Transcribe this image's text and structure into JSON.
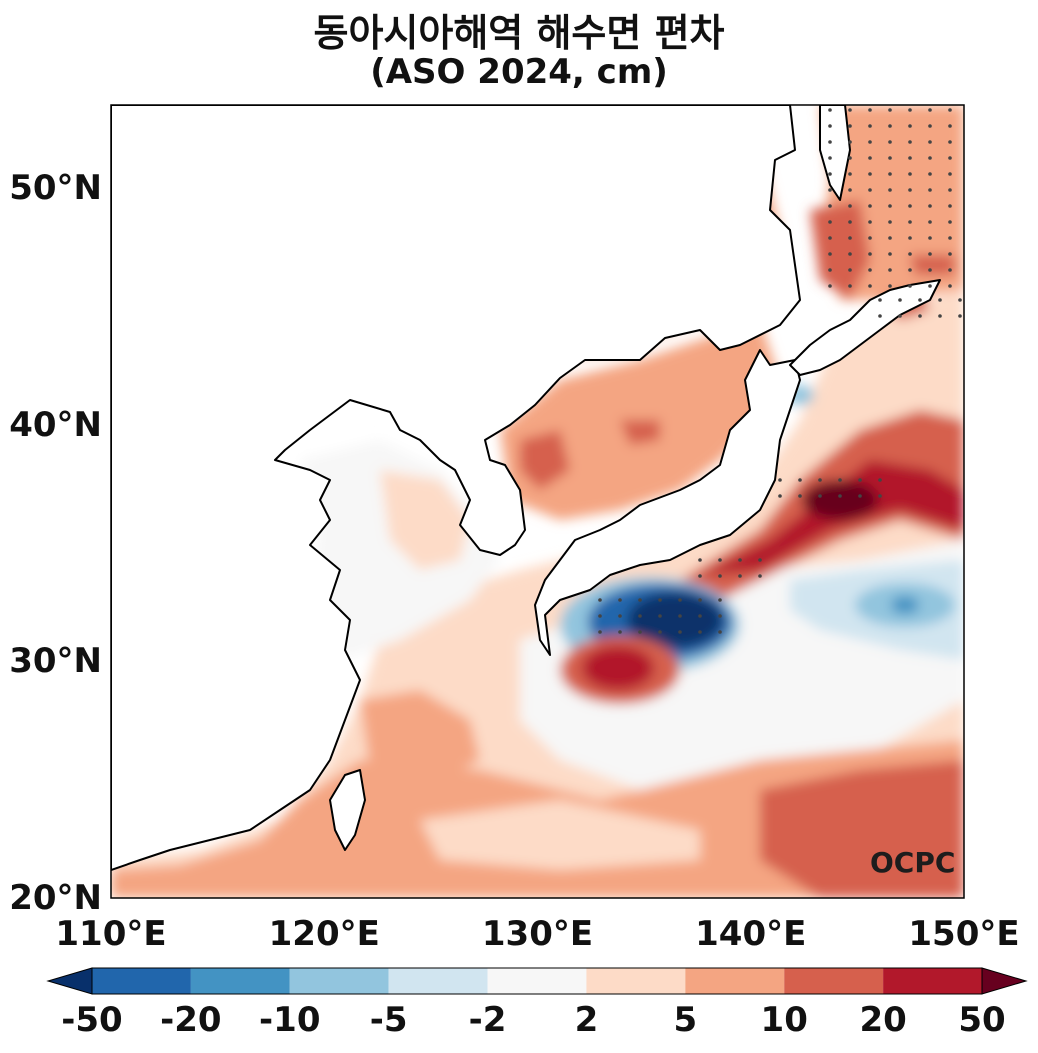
{
  "title": "동아시아해역 해수면 편차",
  "subtitle": "(ASO 2024, cm)",
  "map_extent": {
    "lon_min": 110,
    "lon_max": 150,
    "lat_min": 20,
    "lat_max": 53.5
  },
  "lat_labels": [
    "20°N",
    "30°N",
    "40°N",
    "50°N"
  ],
  "lat_values": [
    20,
    30,
    40,
    50
  ],
  "lon_labels": [
    "110°E",
    "120°E",
    "130°E",
    "140°E",
    "150°E"
  ],
  "lon_values": [
    110,
    120,
    130,
    140,
    150
  ],
  "colorbar": {
    "ticks": [
      "-50",
      "-20",
      "-10",
      "-5",
      "-2",
      "2",
      "5",
      "10",
      "20",
      "50"
    ],
    "colors": [
      "#08306b",
      "#2166ac",
      "#4393c3",
      "#92c5de",
      "#d1e5f0",
      "#f7f7f7",
      "#fddbc7",
      "#f4a582",
      "#d6604d",
      "#b2182b",
      "#67001f"
    ]
  },
  "watermark": "OCPC"
}
